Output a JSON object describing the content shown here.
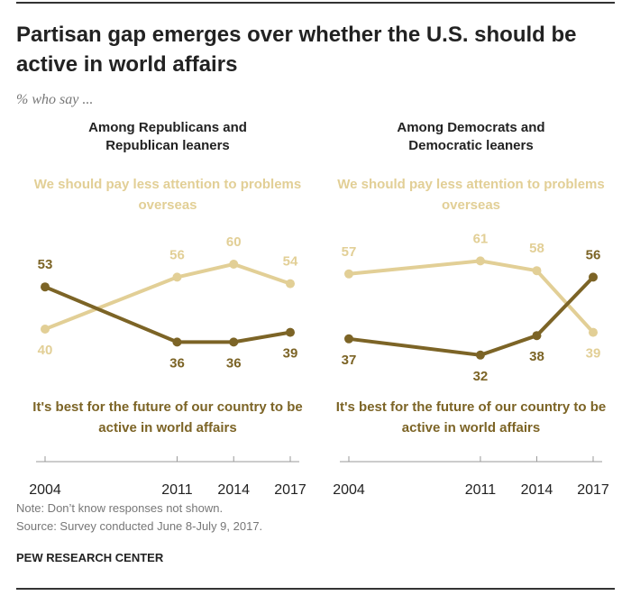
{
  "title": "Partisan gap emerges over whether the U.S. should be active in world affairs",
  "subtitle": "% who say ...",
  "note": "Note: Don’t know responses not shown.",
  "source": "Source: Survey conducted June 8-July 9, 2017.",
  "credit": "PEW RESEARCH CENTER",
  "chart_data": [
    {
      "type": "line",
      "title": "Among Republicans and Republican leaners",
      "x": [
        2004,
        2011,
        2014,
        2017
      ],
      "xlim": [
        2004,
        2017
      ],
      "xticks": [
        2004,
        2011,
        2014,
        2017
      ],
      "ylim": [
        30,
        65
      ],
      "series": [
        {
          "name": "We should pay less attention to problems overseas",
          "color": "#e2cf96",
          "values": [
            40,
            56,
            60,
            54
          ]
        },
        {
          "name": "It's best for the future of our country to be active in world affairs",
          "color": "#7c6426",
          "values": [
            53,
            36,
            36,
            39
          ]
        }
      ]
    },
    {
      "type": "line",
      "title": "Among Democrats and Democratic leaners",
      "x": [
        2004,
        2011,
        2014,
        2017
      ],
      "xlim": [
        2004,
        2017
      ],
      "xticks": [
        2004,
        2011,
        2014,
        2017
      ],
      "ylim": [
        30,
        65
      ],
      "series": [
        {
          "name": "We should pay less attention to problems overseas",
          "color": "#e2cf96",
          "values": [
            57,
            61,
            58,
            39
          ]
        },
        {
          "name": "It's best for the future of our country to be active in world affairs",
          "color": "#7c6426",
          "values": [
            37,
            32,
            38,
            56
          ]
        }
      ]
    }
  ]
}
